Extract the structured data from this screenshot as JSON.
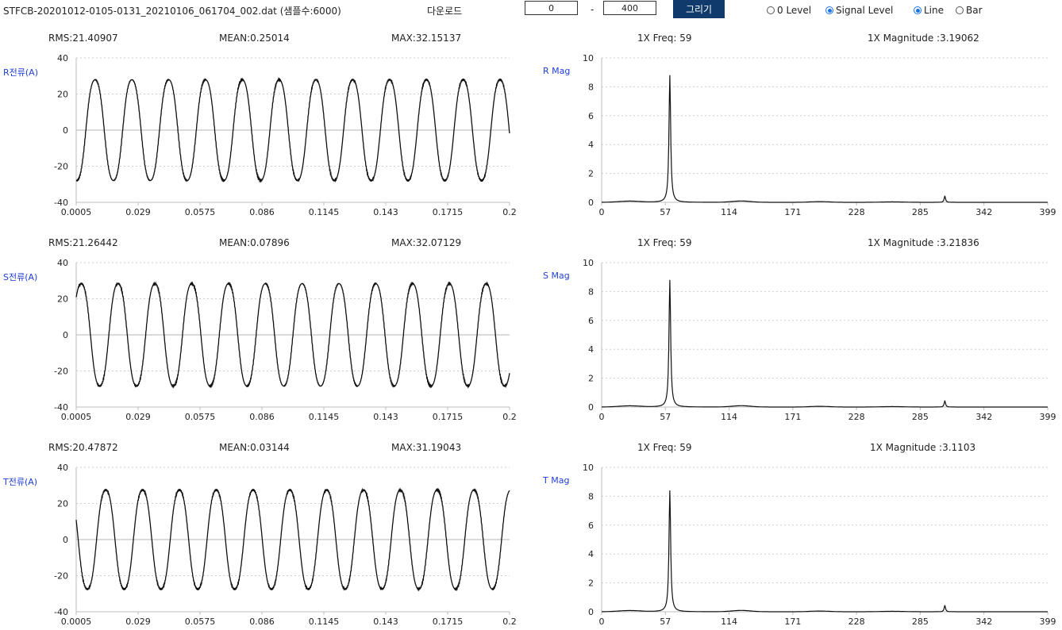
{
  "toolbar": {
    "file_title": "STFCB-20201012-0105-0131_20210106_061704_002.dat (샘플수:6000)",
    "download_label": "다운로드",
    "range_start": "0",
    "range_separator": "-",
    "range_end": "400",
    "draw_button_label": "그리기",
    "level_options": [
      {
        "label": "0 Level",
        "selected": false
      },
      {
        "label": "Signal Level",
        "selected": true
      }
    ],
    "chart_type_options": [
      {
        "label": "Line",
        "selected": true
      },
      {
        "label": "Bar",
        "selected": false
      }
    ],
    "accent_color": "#1a73e8",
    "button_color": "#0f3a6b",
    "ylabel_color": "#1f3fd6"
  },
  "panels": [
    {
      "rms": "RMS:21.40907",
      "mean": "MEAN:0.25014",
      "max": "MAX:32.15137",
      "freq": "1X Freq: 59",
      "magnitude": "1X Magnitude :3.19062"
    },
    {
      "rms": "RMS:21.26442",
      "mean": "MEAN:0.07896",
      "max": "MAX:32.07129",
      "freq": "1X Freq: 59",
      "magnitude": "1X Magnitude :3.21836"
    },
    {
      "rms": "RMS:20.47872",
      "mean": "MEAN:0.03144",
      "max": "MAX:31.19043",
      "freq": "1X Freq: 59",
      "magnitude": "1X Magnitude :3.1103"
    }
  ],
  "chart_data": [
    {
      "type": "line",
      "kind": "waveform",
      "title": "",
      "xlabel": "",
      "ylabel": "R전류(A)",
      "xlim": [
        0.0005,
        0.2
      ],
      "ylim": [
        -40,
        40
      ],
      "xticks": [
        "0.0005",
        "0.029",
        "0.0575",
        "0.086",
        "0.1145",
        "0.143",
        "0.1715",
        "0.2"
      ],
      "yticks": [
        "40",
        "20",
        "0",
        "-20",
        "-40"
      ],
      "signal": {
        "amplitude": 30.5,
        "frequency_hz": 59,
        "phase_deg": 255,
        "harmonic3_ratio": 0.05
      },
      "grid": "horizontal-dotted, solid zero line"
    },
    {
      "type": "line",
      "kind": "waveform",
      "title": "",
      "xlabel": "",
      "ylabel": "S전류(A)",
      "xlim": [
        0.0005,
        0.2
      ],
      "ylim": [
        -40,
        40
      ],
      "xticks": [
        "0.0005",
        "0.029",
        "0.0575",
        "0.086",
        "0.1145",
        "0.143",
        "0.1715",
        "0.2"
      ],
      "yticks": [
        "40",
        "20",
        "0",
        "-20",
        "-40"
      ],
      "signal": {
        "amplitude": 31,
        "frequency_hz": 59,
        "phase_deg": 30,
        "harmonic3_ratio": 0.05
      },
      "grid": "horizontal-dotted, solid zero line"
    },
    {
      "type": "line",
      "kind": "waveform",
      "title": "",
      "xlabel": "",
      "ylabel": "T전류(A)",
      "xlim": [
        0.0005,
        0.2
      ],
      "ylim": [
        -40,
        40
      ],
      "xticks": [
        "0.0005",
        "0.029",
        "0.0575",
        "0.086",
        "0.1145",
        "0.143",
        "0.1715",
        "0.2"
      ],
      "yticks": [
        "40",
        "20",
        "0",
        "-20",
        "-40"
      ],
      "signal": {
        "amplitude": 30,
        "frequency_hz": 59,
        "phase_deg": 150,
        "harmonic3_ratio": 0.05
      },
      "grid": "horizontal-dotted, solid zero line"
    },
    {
      "type": "line",
      "kind": "spectrum",
      "title": "",
      "xlabel": "",
      "ylabel": "R Mag",
      "xlim": [
        0,
        399
      ],
      "ylim": [
        0,
        10
      ],
      "xticks": [
        "0",
        "57",
        "114",
        "171",
        "228",
        "285",
        "342",
        "399"
      ],
      "yticks": [
        "10",
        "8",
        "6",
        "4",
        "2",
        "0"
      ],
      "peaks": [
        {
          "x": 61,
          "y": 8.8
        },
        {
          "x": 307,
          "y": 0.45
        }
      ],
      "grid": "horizontal-dotted"
    },
    {
      "type": "line",
      "kind": "spectrum",
      "title": "",
      "xlabel": "",
      "ylabel": "S Mag",
      "xlim": [
        0,
        399
      ],
      "ylim": [
        0,
        10
      ],
      "xticks": [
        "0",
        "57",
        "114",
        "171",
        "228",
        "285",
        "342",
        "399"
      ],
      "yticks": [
        "10",
        "8",
        "6",
        "4",
        "2",
        "0"
      ],
      "peaks": [
        {
          "x": 61,
          "y": 8.8
        },
        {
          "x": 307,
          "y": 0.45
        }
      ],
      "grid": "horizontal-dotted"
    },
    {
      "type": "line",
      "kind": "spectrum",
      "title": "",
      "xlabel": "",
      "ylabel": "T Mag",
      "xlim": [
        0,
        399
      ],
      "ylim": [
        0,
        10
      ],
      "xticks": [
        "0",
        "57",
        "114",
        "171",
        "228",
        "285",
        "342",
        "399"
      ],
      "yticks": [
        "10",
        "8",
        "6",
        "4",
        "2",
        "0"
      ],
      "peaks": [
        {
          "x": 61,
          "y": 8.4
        },
        {
          "x": 307,
          "y": 0.45
        }
      ],
      "grid": "horizontal-dotted"
    }
  ]
}
